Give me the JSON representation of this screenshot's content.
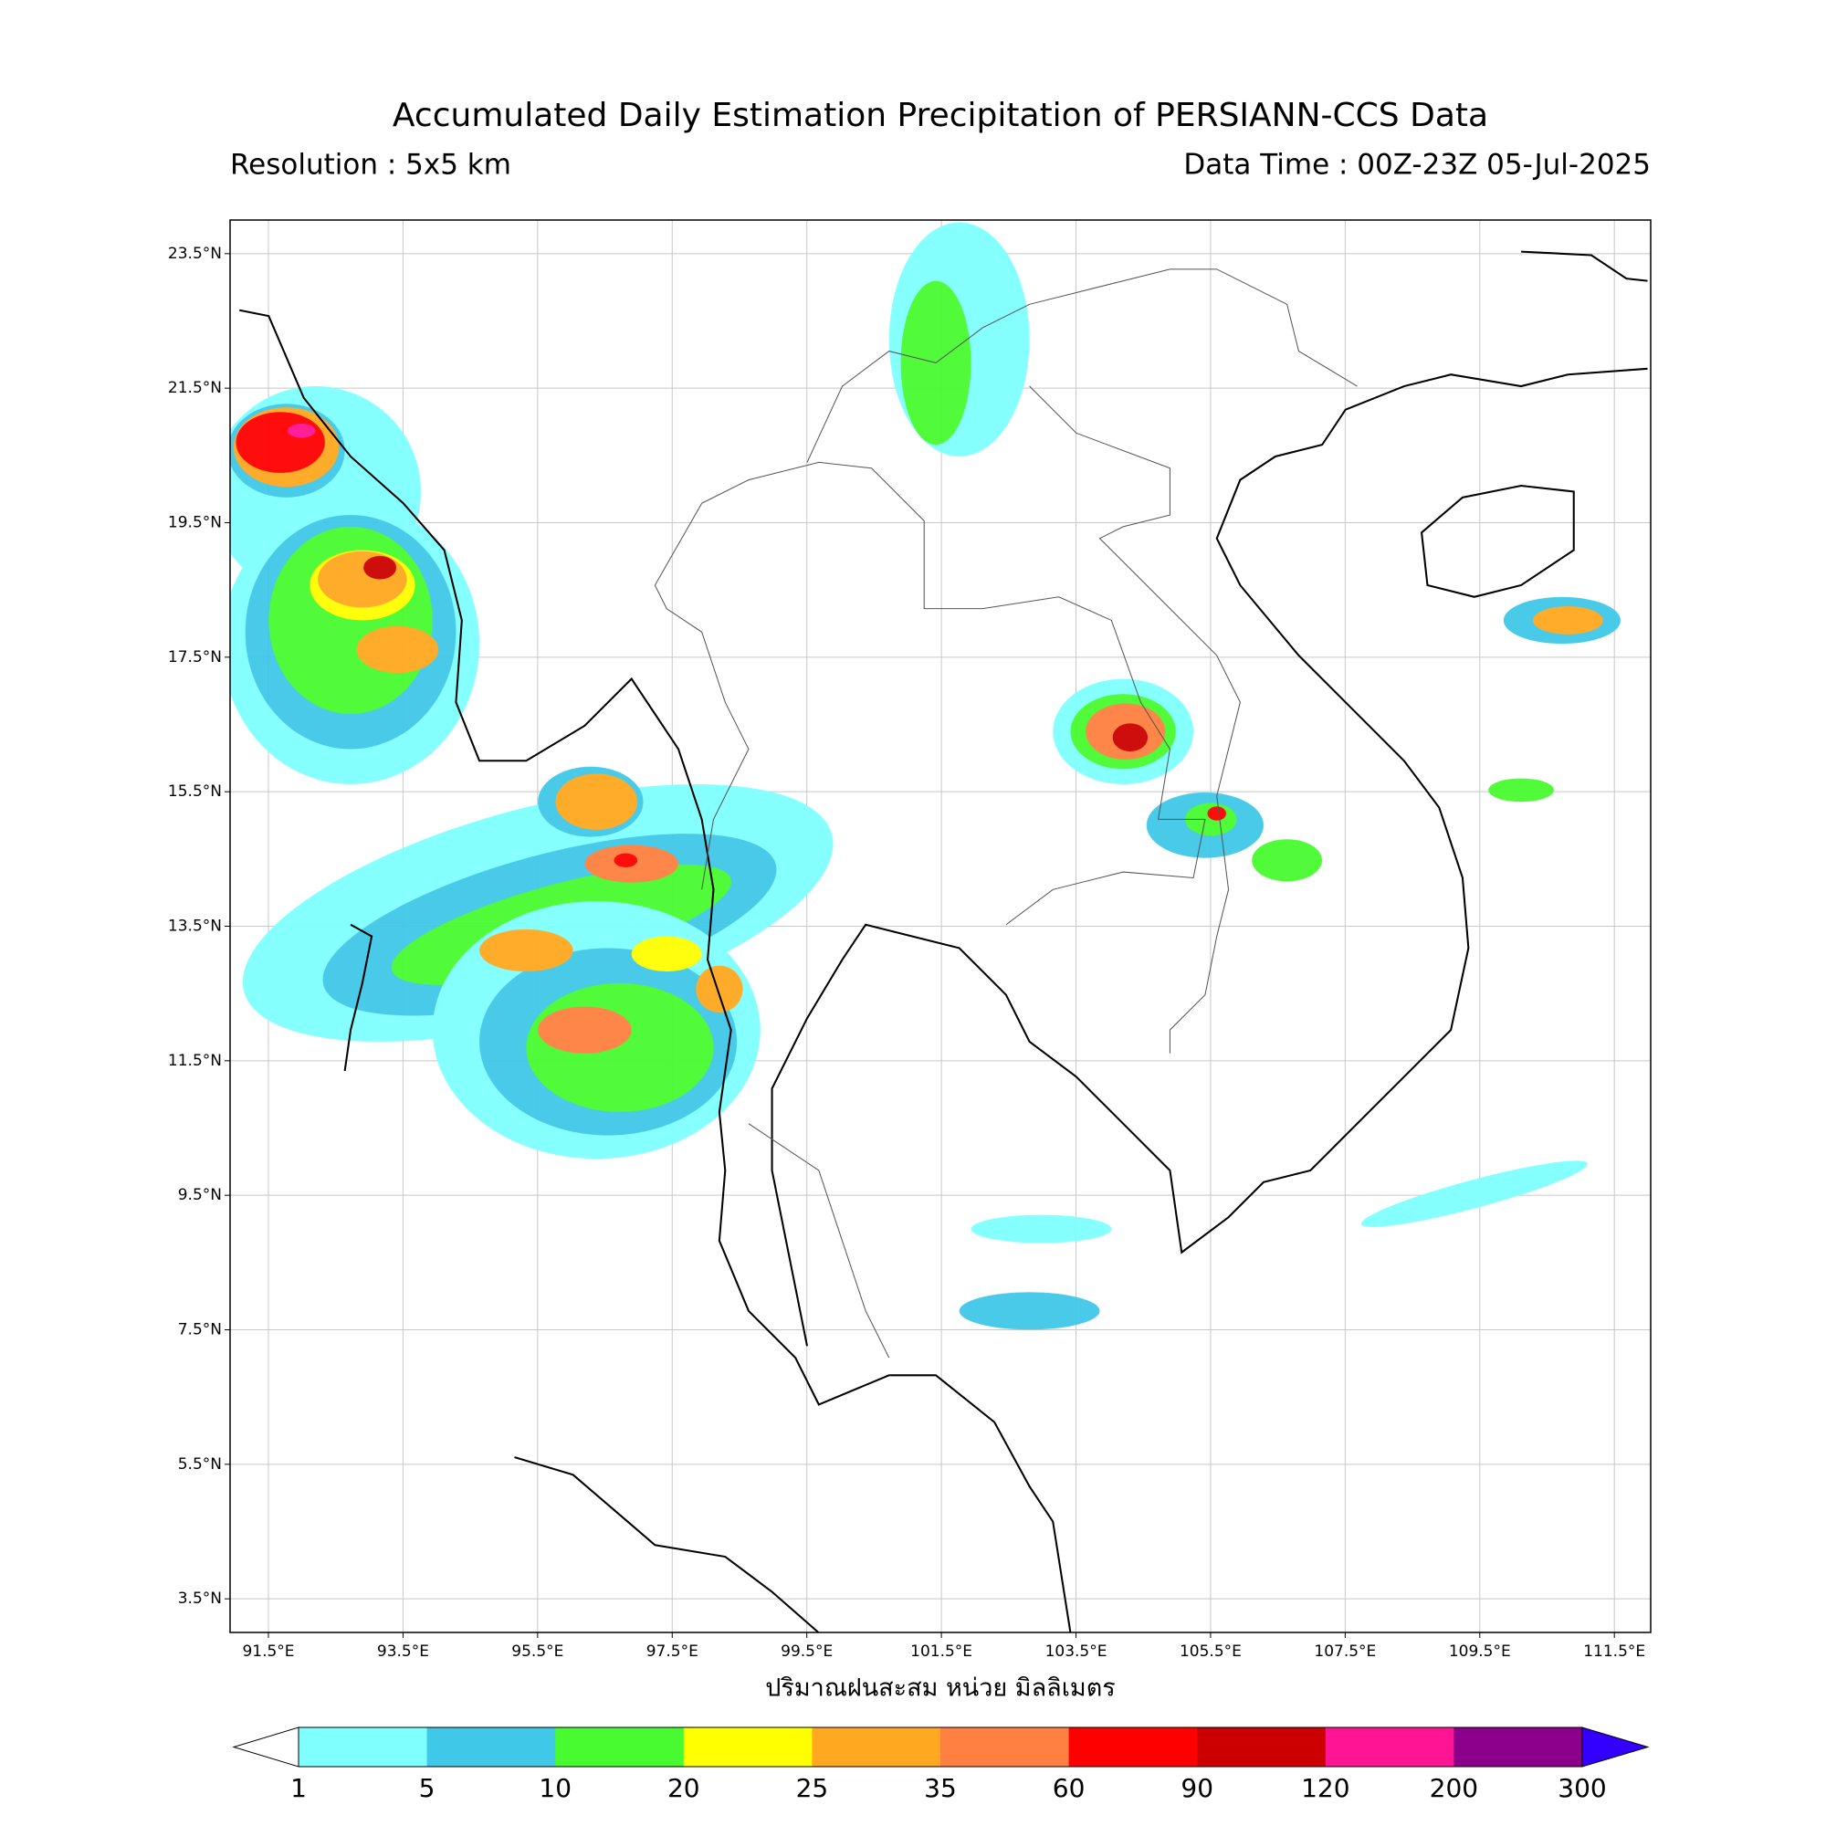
{
  "chart_data": {
    "type": "map",
    "title": "Accumulated Daily Estimation Precipitation of PERSIANN-CCS Data",
    "subtitle_left": "Resolution : 5x5 km",
    "subtitle_right": "Data Time : 00Z-23Z 05-Jul-2025",
    "xlabel": "ปริมาณฝนสะสม หน่วย มิลลิเมตร",
    "xlim": [
      90.93,
      112.04
    ],
    "ylim": [
      3.0,
      24.0
    ],
    "grid": true,
    "xticks": [
      {
        "value": 91.5,
        "label": "91.5°E"
      },
      {
        "value": 93.5,
        "label": "93.5°E"
      },
      {
        "value": 95.5,
        "label": "95.5°E"
      },
      {
        "value": 97.5,
        "label": "97.5°E"
      },
      {
        "value": 99.5,
        "label": "99.5°E"
      },
      {
        "value": 101.5,
        "label": "101.5°E"
      },
      {
        "value": 103.5,
        "label": "103.5°E"
      },
      {
        "value": 105.5,
        "label": "105.5°E"
      },
      {
        "value": 107.5,
        "label": "107.5°E"
      },
      {
        "value": 109.5,
        "label": "109.5°E"
      },
      {
        "value": 111.5,
        "label": "111.5°E"
      }
    ],
    "yticks": [
      {
        "value": 3.5,
        "label": "3.5°N"
      },
      {
        "value": 5.5,
        "label": "5.5°N"
      },
      {
        "value": 7.5,
        "label": "7.5°N"
      },
      {
        "value": 9.5,
        "label": "9.5°N"
      },
      {
        "value": 11.5,
        "label": "11.5°N"
      },
      {
        "value": 13.5,
        "label": "13.5°N"
      },
      {
        "value": 15.5,
        "label": "15.5°N"
      },
      {
        "value": 17.5,
        "label": "17.5°N"
      },
      {
        "value": 19.5,
        "label": "19.5°N"
      },
      {
        "value": 21.5,
        "label": "21.5°N"
      },
      {
        "value": 23.5,
        "label": "23.5°N"
      }
    ],
    "colorbar": {
      "levels": [
        1,
        5,
        10,
        20,
        25,
        35,
        60,
        90,
        120,
        200,
        300
      ],
      "colors": [
        "#80ffff",
        "#40c8e8",
        "#48fb30",
        "#ffff00",
        "#ffa820",
        "#ff8040",
        "#ff0000",
        "#cc0000",
        "#ff1493",
        "#8b008b"
      ],
      "under_color": "#ffffff",
      "over_color": "#3300ff"
    }
  }
}
